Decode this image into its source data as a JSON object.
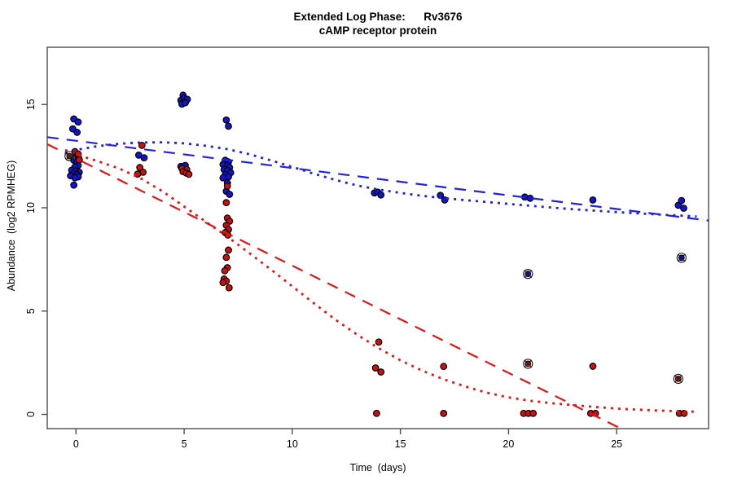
{
  "figure": {
    "title_line1": "Extended Log Phase:      Rv3676",
    "title_line2": "cAMP receptor protein"
  },
  "chart_data": {
    "type": "scatter",
    "title": "Extended Log Phase:      Rv3676",
    "subtitle": "cAMP receptor protein",
    "xlabel": "Time  (days)",
    "ylabel": "Abundance  (log2 RPMHEG)",
    "xlim": [
      -1.33,
      29.25
    ],
    "ylim": [
      -0.69,
      17.77
    ],
    "x_ticks": [
      0,
      5,
      10,
      15,
      20,
      25
    ],
    "y_ticks": [
      0,
      5,
      10,
      15
    ],
    "grid": false,
    "legend": false,
    "colors": {
      "blue_points": "#1414cc",
      "red_points": "#cc1010",
      "blue_lines": "#2121e6",
      "red_lines": "#e61414",
      "axis": "#4d4d4d",
      "outlier_marker": "#1a1a1a"
    },
    "series": [
      {
        "name": "blue-observations",
        "kind": "points",
        "color": "#1414cc",
        "points": [
          [
            -0.1,
            14.3
          ],
          [
            0.1,
            14.15
          ],
          [
            -0.15,
            13.82
          ],
          [
            0.05,
            13.65
          ],
          [
            0.0,
            12.55
          ],
          [
            0.12,
            12.42
          ],
          [
            -0.1,
            12.3
          ],
          [
            0.05,
            12.22
          ],
          [
            0.1,
            12.05
          ],
          [
            -0.05,
            11.97
          ],
          [
            -0.2,
            11.82
          ],
          [
            0.0,
            11.78
          ],
          [
            0.15,
            11.72
          ],
          [
            -0.12,
            11.65
          ],
          [
            0.05,
            11.6
          ],
          [
            -0.25,
            11.55
          ],
          [
            0.1,
            11.5
          ],
          [
            -0.05,
            11.45
          ],
          [
            -0.1,
            11.1
          ],
          [
            2.9,
            12.55
          ],
          [
            3.15,
            12.42
          ],
          [
            4.85,
            15.2
          ],
          [
            4.95,
            15.45
          ],
          [
            5.0,
            15.3
          ],
          [
            5.08,
            15.15
          ],
          [
            5.15,
            15.25
          ],
          [
            4.9,
            15.02
          ],
          [
            5.05,
            15.08
          ],
          [
            4.85,
            12.0
          ],
          [
            5.05,
            12.05
          ],
          [
            6.95,
            14.25
          ],
          [
            7.05,
            13.95
          ],
          [
            6.9,
            12.3
          ],
          [
            7.05,
            12.22
          ],
          [
            6.8,
            12.1
          ],
          [
            7.0,
            12.05
          ],
          [
            7.1,
            11.95
          ],
          [
            6.85,
            11.85
          ],
          [
            7.0,
            11.8
          ],
          [
            7.15,
            11.7
          ],
          [
            6.9,
            11.6
          ],
          [
            7.05,
            11.5
          ],
          [
            6.8,
            11.45
          ],
          [
            7.0,
            11.2
          ],
          [
            6.95,
            10.8
          ],
          [
            7.1,
            10.65
          ],
          [
            13.8,
            10.72
          ],
          [
            13.95,
            10.76
          ],
          [
            14.1,
            10.62
          ],
          [
            16.85,
            10.6
          ],
          [
            17.05,
            10.38
          ],
          [
            20.75,
            10.52
          ],
          [
            21.0,
            10.46
          ],
          [
            23.9,
            10.38
          ],
          [
            27.85,
            10.12
          ],
          [
            28.0,
            10.35
          ],
          [
            28.1,
            9.98
          ]
        ]
      },
      {
        "name": "red-observations",
        "kind": "points",
        "color": "#cc1010",
        "points": [
          [
            -0.05,
            12.72
          ],
          [
            0.1,
            12.6
          ],
          [
            0.15,
            12.32
          ],
          [
            3.05,
            13.02
          ],
          [
            2.95,
            11.95
          ],
          [
            3.1,
            11.72
          ],
          [
            2.85,
            11.63
          ],
          [
            4.9,
            11.9
          ],
          [
            5.12,
            11.85
          ],
          [
            4.95,
            11.75
          ],
          [
            5.1,
            11.68
          ],
          [
            5.22,
            11.62
          ],
          [
            7.0,
            11.05
          ],
          [
            6.95,
            10.25
          ],
          [
            7.0,
            9.5
          ],
          [
            7.1,
            9.35
          ],
          [
            6.95,
            9.15
          ],
          [
            7.05,
            8.95
          ],
          [
            6.9,
            8.8
          ],
          [
            7.02,
            8.68
          ],
          [
            7.05,
            7.95
          ],
          [
            6.95,
            7.6
          ],
          [
            7.0,
            7.1
          ],
          [
            6.88,
            6.95
          ],
          [
            6.85,
            6.55
          ],
          [
            6.95,
            6.45
          ],
          [
            6.8,
            6.38
          ],
          [
            7.08,
            6.13
          ],
          [
            14.0,
            3.5
          ],
          [
            13.85,
            2.25
          ],
          [
            14.1,
            2.05
          ],
          [
            13.9,
            0.05
          ],
          [
            17.0,
            2.32
          ],
          [
            17.0,
            0.05
          ],
          [
            20.7,
            0.05
          ],
          [
            20.92,
            0.05
          ],
          [
            21.14,
            0.05
          ],
          [
            23.9,
            2.33
          ],
          [
            23.8,
            0.05
          ],
          [
            24.02,
            0.05
          ],
          [
            27.9,
            0.05
          ],
          [
            28.12,
            0.05
          ]
        ]
      },
      {
        "name": "blue-linear-trend",
        "kind": "line",
        "style": "dashed",
        "color": "#2121e6",
        "points": [
          [
            -1.33,
            13.42
          ],
          [
            29.25,
            9.38
          ]
        ]
      },
      {
        "name": "red-linear-trend",
        "kind": "line",
        "style": "dashed",
        "color": "#e61414",
        "points": [
          [
            -1.33,
            13.08
          ],
          [
            25.2,
            -0.69
          ]
        ]
      },
      {
        "name": "blue-loess-trend",
        "kind": "line",
        "style": "dotted",
        "color": "#2121e6",
        "points": [
          [
            -0.5,
            12.68
          ],
          [
            0,
            12.8
          ],
          [
            1,
            12.98
          ],
          [
            2,
            13.1
          ],
          [
            3,
            13.16
          ],
          [
            4,
            13.17
          ],
          [
            5,
            13.12
          ],
          [
            6,
            13.0
          ],
          [
            7,
            12.84
          ],
          [
            8,
            12.6
          ],
          [
            9,
            12.3
          ],
          [
            10,
            11.98
          ],
          [
            11,
            11.65
          ],
          [
            12,
            11.35
          ],
          [
            13,
            11.08
          ],
          [
            14,
            10.88
          ],
          [
            15,
            10.72
          ],
          [
            16,
            10.58
          ],
          [
            17,
            10.47
          ],
          [
            18,
            10.37
          ],
          [
            19,
            10.28
          ],
          [
            20,
            10.19
          ],
          [
            21,
            10.1
          ],
          [
            22,
            10.01
          ],
          [
            23,
            9.93
          ],
          [
            24,
            9.86
          ],
          [
            25,
            9.79
          ],
          [
            26,
            9.73
          ],
          [
            27,
            9.67
          ],
          [
            28,
            9.62
          ],
          [
            28.7,
            9.58
          ]
        ]
      },
      {
        "name": "red-loess-trend",
        "kind": "line",
        "style": "dotted",
        "color": "#e61414",
        "points": [
          [
            -0.5,
            12.8
          ],
          [
            0,
            12.58
          ],
          [
            1,
            12.26
          ],
          [
            2,
            11.9
          ],
          [
            3,
            11.42
          ],
          [
            4,
            10.8
          ],
          [
            5,
            10.06
          ],
          [
            6,
            9.33
          ],
          [
            7,
            8.6
          ],
          [
            8,
            7.82
          ],
          [
            9,
            7.02
          ],
          [
            10,
            6.2
          ],
          [
            11,
            5.38
          ],
          [
            12,
            4.58
          ],
          [
            13,
            3.86
          ],
          [
            14,
            3.2
          ],
          [
            15,
            2.62
          ],
          [
            16,
            2.12
          ],
          [
            17,
            1.7
          ],
          [
            18,
            1.35
          ],
          [
            19,
            1.05
          ],
          [
            20,
            0.82
          ],
          [
            21,
            0.66
          ],
          [
            22,
            0.54
          ],
          [
            23,
            0.45
          ],
          [
            24,
            0.36
          ],
          [
            25,
            0.28
          ],
          [
            26,
            0.23
          ],
          [
            27,
            0.18
          ],
          [
            28,
            0.15
          ],
          [
            28.6,
            0.13
          ]
        ]
      }
    ],
    "flagged_outliers": [
      {
        "x": -0.3,
        "y": 12.5,
        "series": "red"
      },
      {
        "x": 20.9,
        "y": 6.8,
        "series": "blue"
      },
      {
        "x": 20.9,
        "y": 2.45,
        "series": "red"
      },
      {
        "x": 28.0,
        "y": 7.58,
        "series": "blue"
      },
      {
        "x": 27.85,
        "y": 1.72,
        "series": "red"
      }
    ]
  }
}
